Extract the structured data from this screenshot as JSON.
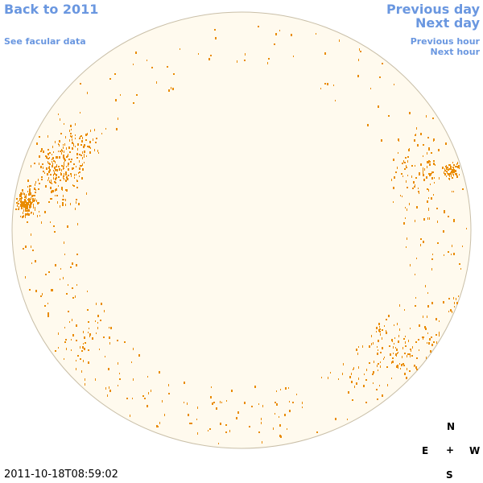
{
  "nav": {
    "back": "Back to 2011",
    "facular": "See facular data",
    "prev_day": "Previous day",
    "next_day": "Next day",
    "prev_hour": "Previous hour",
    "next_hour": "Next hour"
  },
  "timestamp": "2011-10-18T08:59:02",
  "compass": {
    "north": "N",
    "east": "E",
    "center": "+",
    "west": "W",
    "south": "S"
  }
}
